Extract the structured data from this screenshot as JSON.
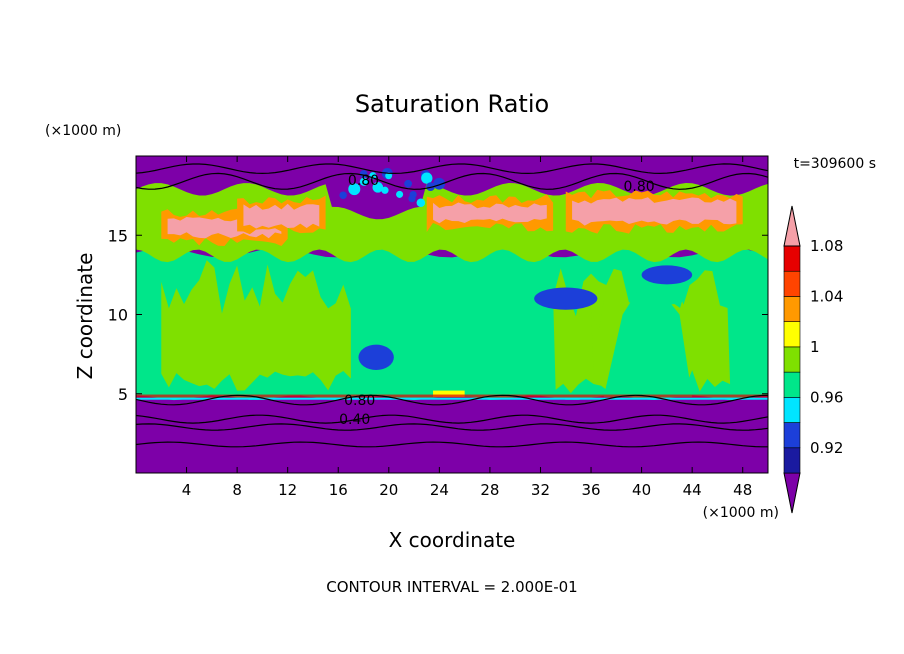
{
  "chart_data": {
    "type": "heatmap",
    "title": "Saturation Ratio",
    "time_label": "t=309600 s",
    "xlabel": "X coordinate",
    "ylabel": "Z coordinate",
    "x_unit": "(×1000 m)",
    "y_unit": "(×1000 m)",
    "footer": "CONTOUR INTERVAL = 2.000E-01",
    "xlim": [
      0,
      50
    ],
    "ylim": [
      0,
      20
    ],
    "x_ticks": [
      "4",
      "8",
      "12",
      "16",
      "20",
      "24",
      "28",
      "32",
      "36",
      "40",
      "44",
      "48"
    ],
    "x_tick_values": [
      4,
      8,
      12,
      16,
      20,
      24,
      28,
      32,
      36,
      40,
      44,
      48
    ],
    "y_ticks": [
      "5",
      "10",
      "15"
    ],
    "y_tick_values": [
      5,
      10,
      15
    ],
    "colorbar": {
      "labels": [
        "1.08",
        "1.04",
        "1",
        "0.96",
        "0.92"
      ],
      "label_values": [
        1.08,
        1.04,
        1.0,
        0.96,
        0.92
      ],
      "colors": [
        "#7d00a8",
        "#1a1aa0",
        "#1c3fd9",
        "#00e5ff",
        "#00e68a",
        "#7fe000",
        "#ffff00",
        "#ff9900",
        "#ff4400",
        "#e60000",
        "#f5a0a8"
      ]
    },
    "contour_labels": [
      {
        "text": "0.80",
        "x": 18.0,
        "z": 18.5
      },
      {
        "text": "0.80",
        "x": 39.8,
        "z": 18.1
      },
      {
        "text": "0.80",
        "x": 17.7,
        "z": 4.6
      },
      {
        "text": "0.40",
        "x": 17.3,
        "z": 3.4
      }
    ],
    "colors": {
      "purple": "#7d00a8",
      "green": "#00e68a",
      "lime": "#7fe000",
      "pink": "#f5a0a8",
      "yellow": "#ffff00",
      "orange": "#ff9900",
      "red": "#e60000",
      "blue": "#1c3fd9",
      "cyan": "#00e5ff"
    }
  }
}
